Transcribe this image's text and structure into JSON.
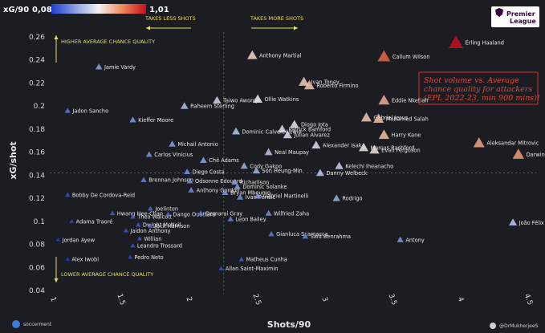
{
  "chart_data": {
    "type": "scatter",
    "xlabel": "Shots/90",
    "ylabel": "xG/shot",
    "xlim": [
      1.0,
      4.5
    ],
    "ylim": [
      0.04,
      0.26
    ],
    "x_ticks": [
      "1",
      "1.5",
      "2",
      "2.5",
      "3",
      "3.5",
      "4",
      "4.5"
    ],
    "y_ticks": [
      "0.04",
      "0.06",
      "0.08",
      "0.1",
      "0.12",
      "0.14",
      "0.16",
      "0.18",
      "0.2",
      "0.22",
      "0.24",
      "0.26"
    ],
    "avg_x": 2.27,
    "avg_y": 0.142,
    "grid": false,
    "colorbar": {
      "label": "xG/90",
      "min": "0,08",
      "max": "1,01",
      "min_val": 0.08,
      "max_val": 1.01
    },
    "points": [
      {
        "name": "Erling Haaland",
        "x": 3.98,
        "y": 0.255,
        "xg90": 1.01
      },
      {
        "name": "Callum Wilson",
        "x": 3.45,
        "y": 0.243,
        "xg90": 0.84
      },
      {
        "name": "Jamie Vardy",
        "x": 1.35,
        "y": 0.234,
        "xg90": 0.32
      },
      {
        "name": "Anthony Martial",
        "x": 2.48,
        "y": 0.244,
        "xg90": 0.6
      },
      {
        "name": "Ivan Toney",
        "x": 2.86,
        "y": 0.221,
        "xg90": 0.63
      },
      {
        "name": "Roberto Firmino",
        "x": 2.9,
        "y": 0.218,
        "xg90": 0.64
      },
      {
        "name": "Ollie Watkins",
        "x": 2.52,
        "y": 0.206,
        "xg90": 0.55
      },
      {
        "name": "Taiwo Awoniyi",
        "x": 2.22,
        "y": 0.205,
        "xg90": 0.46
      },
      {
        "name": "Eddie Nketiah",
        "x": 3.45,
        "y": 0.205,
        "xg90": 0.7
      },
      {
        "name": "Raheem Sterling",
        "x": 1.98,
        "y": 0.2,
        "xg90": 0.4
      },
      {
        "name": "Jadon Sancho",
        "x": 1.12,
        "y": 0.196,
        "xg90": 0.22
      },
      {
        "name": "Gabriel Jesus",
        "x": 3.32,
        "y": 0.19,
        "xg90": 0.64
      },
      {
        "name": "Mohamed Salah",
        "x": 3.41,
        "y": 0.189,
        "xg90": 0.66
      },
      {
        "name": "Kieffer Moore",
        "x": 1.6,
        "y": 0.188,
        "xg90": 0.3
      },
      {
        "name": "Diogo Jota",
        "x": 2.79,
        "y": 0.184,
        "xg90": 0.52
      },
      {
        "name": "Dominic Calvert-Lewin",
        "x": 2.36,
        "y": 0.178,
        "xg90": 0.42
      },
      {
        "name": "Patrick Bamford",
        "x": 2.7,
        "y": 0.18,
        "xg90": 0.5
      },
      {
        "name": "Julian Alvarez",
        "x": 2.74,
        "y": 0.175,
        "xg90": 0.5
      },
      {
        "name": "Harry Kane",
        "x": 3.45,
        "y": 0.175,
        "xg90": 0.66
      },
      {
        "name": "Michail Antonio",
        "x": 1.89,
        "y": 0.167,
        "xg90": 0.32
      },
      {
        "name": "Alexander Isak",
        "x": 2.95,
        "y": 0.166,
        "xg90": 0.5
      },
      {
        "name": "Marcus Rashford",
        "x": 3.3,
        "y": 0.164,
        "xg90": 0.56
      },
      {
        "name": "Evan Ferguson",
        "x": 3.38,
        "y": 0.162,
        "xg90": 0.58
      },
      {
        "name": "Aleksandar Mitrovic",
        "x": 4.15,
        "y": 0.168,
        "xg90": 0.72
      },
      {
        "name": "Neal Maupay",
        "x": 2.6,
        "y": 0.16,
        "xg90": 0.42
      },
      {
        "name": "Darwin Núñez",
        "x": 4.44,
        "y": 0.158,
        "xg90": 0.74
      },
      {
        "name": "Carlos Vinícius",
        "x": 1.72,
        "y": 0.158,
        "xg90": 0.28
      },
      {
        "name": "Ché Adams",
        "x": 2.12,
        "y": 0.153,
        "xg90": 0.33
      },
      {
        "name": "Cody Gakpo",
        "x": 2.42,
        "y": 0.148,
        "xg90": 0.36
      },
      {
        "name": "Kelechi Iheanacho",
        "x": 3.12,
        "y": 0.148,
        "xg90": 0.45
      },
      {
        "name": "Son Heung-Min",
        "x": 2.51,
        "y": 0.144,
        "xg90": 0.37
      },
      {
        "name": "Danny Welbeck",
        "x": 2.98,
        "y": 0.142,
        "xg90": 0.43
      },
      {
        "name": "Diego Costa",
        "x": 2.0,
        "y": 0.143,
        "xg90": 0.28
      },
      {
        "name": "Brennan Johnson",
        "x": 1.68,
        "y": 0.136,
        "xg90": 0.24
      },
      {
        "name": "Odsonne Edouard",
        "x": 2.02,
        "y": 0.135,
        "xg90": 0.27
      },
      {
        "name": "Richarlison",
        "x": 2.35,
        "y": 0.134,
        "xg90": 0.31
      },
      {
        "name": "Anthony Gordon",
        "x": 2.03,
        "y": 0.127,
        "xg90": 0.26
      },
      {
        "name": "Dominic Solanke",
        "x": 2.37,
        "y": 0.13,
        "xg90": 0.31
      },
      {
        "name": "Bryan Mbeumo",
        "x": 2.28,
        "y": 0.125,
        "xg90": 0.29
      },
      {
        "name": "Ivan Perišić",
        "x": 2.39,
        "y": 0.121,
        "xg90": 0.29
      },
      {
        "name": "Gabriel Martinelli",
        "x": 2.52,
        "y": 0.122,
        "xg90": 0.31
      },
      {
        "name": "Rodrigo",
        "x": 3.1,
        "y": 0.12,
        "xg90": 0.37
      },
      {
        "name": "Bobby De Cordova-Reid",
        "x": 1.12,
        "y": 0.123,
        "xg90": 0.14
      },
      {
        "name": "Joelinton",
        "x": 1.73,
        "y": 0.111,
        "xg90": 0.19
      },
      {
        "name": "Hwang Hee-Chan",
        "x": 1.45,
        "y": 0.107,
        "xg90": 0.16
      },
      {
        "name": "Theo Walcott",
        "x": 1.6,
        "y": 0.104,
        "xg90": 0.17
      },
      {
        "name": "Dango Ouattara",
        "x": 1.86,
        "y": 0.106,
        "xg90": 0.2
      },
      {
        "name": "Demarai Gray",
        "x": 2.1,
        "y": 0.107,
        "xg90": 0.22
      },
      {
        "name": "Leon Bailey",
        "x": 2.32,
        "y": 0.102,
        "xg90": 0.24
      },
      {
        "name": "Wilfried Zaha",
        "x": 2.6,
        "y": 0.107,
        "xg90": 0.28
      },
      {
        "name": "Adama Traoré",
        "x": 1.15,
        "y": 0.1,
        "xg90": 0.11
      },
      {
        "name": "Dwight McNeil",
        "x": 1.64,
        "y": 0.097,
        "xg90": 0.16
      },
      {
        "name": "Jack Harrison",
        "x": 1.73,
        "y": 0.096,
        "xg90": 0.17
      },
      {
        "name": "Jaidon Anthony",
        "x": 1.55,
        "y": 0.092,
        "xg90": 0.14
      },
      {
        "name": "Willian",
        "x": 1.65,
        "y": 0.085,
        "xg90": 0.14
      },
      {
        "name": "Leandro Trossard",
        "x": 1.6,
        "y": 0.079,
        "xg90": 0.13
      },
      {
        "name": "Gianluca Scamacca",
        "x": 2.62,
        "y": 0.089,
        "xg90": 0.23
      },
      {
        "name": "Saïd Benrahma",
        "x": 2.87,
        "y": 0.087,
        "xg90": 0.25
      },
      {
        "name": "João Félix",
        "x": 4.4,
        "y": 0.099,
        "xg90": 0.43
      },
      {
        "name": "Antony",
        "x": 3.57,
        "y": 0.084,
        "xg90": 0.3
      },
      {
        "name": "Jordan Ayew",
        "x": 1.05,
        "y": 0.084,
        "xg90": 0.09
      },
      {
        "name": "Pedro Neto",
        "x": 1.58,
        "y": 0.069,
        "xg90": 0.11
      },
      {
        "name": "Alex Iwobi",
        "x": 1.12,
        "y": 0.067,
        "xg90": 0.08
      },
      {
        "name": "Matheus Cunha",
        "x": 2.4,
        "y": 0.067,
        "xg90": 0.16
      },
      {
        "name": "Allan Saint-Maximin",
        "x": 2.25,
        "y": 0.059,
        "xg90": 0.13
      }
    ]
  },
  "annotations": {
    "takes_less": "TAKES LESS SHOTS",
    "takes_more": "TAKES MORE SHOTS",
    "higher": "HIGHER AVERAGE CHANCE QUALITY",
    "lower": "LOWER AVERAGE CHANCE QUALITY",
    "note_line1": "Shot volume vs. Average",
    "note_line2": "chance quality for attackers",
    "note_line3": "(EPL 2022-23, min 900 mins)!"
  },
  "branding": {
    "league_line1": "Premier",
    "league_line2": "League",
    "footer_left": "soccerment",
    "footer_right": "@DrMukherjeeS"
  }
}
